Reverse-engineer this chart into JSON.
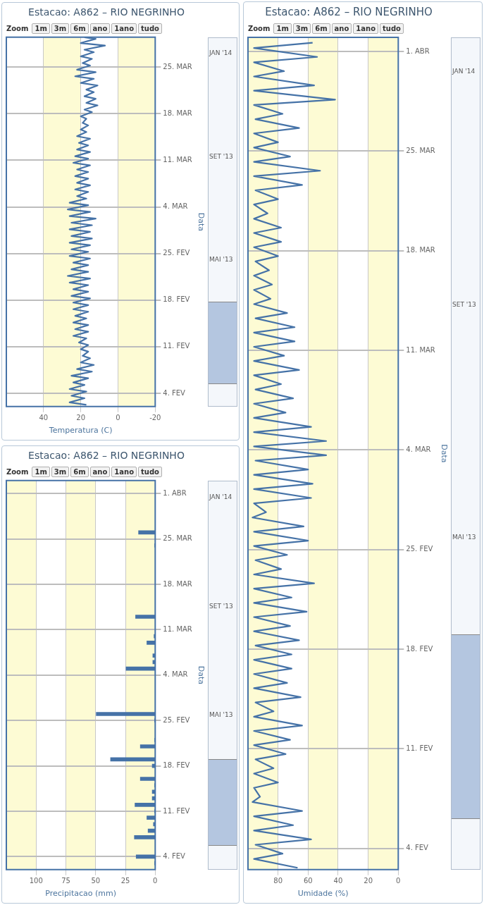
{
  "chart_data": [
    {
      "type": "line",
      "title": "Estacao: A862 – RIO NEGRINHO",
      "orientation": "horizontal",
      "xlabel": "Temperatura (C)",
      "ylabel": "Data",
      "color": "#4572a7",
      "grid": true,
      "ylim": [
        "2013-02-02",
        "2013-03-29T12:00"
      ],
      "yticks": [
        {
          "value": "2013-02-04",
          "label": "4. FEV"
        },
        {
          "value": "2013-02-11",
          "label": "11. FEV"
        },
        {
          "value": "2013-02-18",
          "label": "18. FEV"
        },
        {
          "value": "2013-02-25",
          "label": "25. FEV"
        },
        {
          "value": "2013-03-04",
          "label": "4. MAR"
        },
        {
          "value": "2013-03-11",
          "label": "11. MAR"
        },
        {
          "value": "2013-03-18",
          "label": "18. MAR"
        },
        {
          "value": "2013-03-25",
          "label": "25. MAR"
        }
      ],
      "xlim": [
        60,
        -20
      ],
      "xticks": [
        -20,
        0,
        20,
        40
      ],
      "bands": [
        {
          "axis": "x",
          "from": -20,
          "to": 0,
          "color": "#fdfbd4"
        },
        {
          "axis": "x",
          "from": 20,
          "to": 40,
          "color": "#fdfbd4"
        }
      ],
      "annotations": [
        "Zoom",
        "1m",
        "3m",
        "6m",
        "ano",
        "1ano",
        "tudo",
        "MAI '13",
        "SET '13",
        "JAN '14"
      ],
      "x": [
        "2013-02-02T06:00",
        "2013-02-02T15:00",
        "2013-02-03T06:00",
        "2013-02-03T15:00",
        "2013-02-04T06:00",
        "2013-02-04T15:00",
        "2013-02-05T06:00",
        "2013-02-05T15:00",
        "2013-02-06T06:00",
        "2013-02-06T15:00",
        "2013-02-07T06:00",
        "2013-02-07T15:00",
        "2013-02-08T06:00",
        "2013-02-08T15:00",
        "2013-02-09T06:00",
        "2013-02-09T15:00",
        "2013-02-10T06:00",
        "2013-02-10T15:00",
        "2013-02-11T06:00",
        "2013-02-11T15:00",
        "2013-02-12T06:00",
        "2013-02-12T15:00",
        "2013-02-13T06:00",
        "2013-02-13T15:00",
        "2013-02-14T06:00",
        "2013-02-14T15:00",
        "2013-02-15T06:00",
        "2013-02-15T15:00",
        "2013-02-16T06:00",
        "2013-02-16T15:00",
        "2013-02-17T06:00",
        "2013-02-17T15:00",
        "2013-02-18T06:00",
        "2013-02-18T15:00",
        "2013-02-19T06:00",
        "2013-02-19T15:00",
        "2013-02-20T06:00",
        "2013-02-20T15:00",
        "2013-02-21T06:00",
        "2013-02-21T15:00",
        "2013-02-22T06:00",
        "2013-02-22T15:00",
        "2013-02-23T06:00",
        "2013-02-23T15:00",
        "2013-02-24T06:00",
        "2013-02-24T15:00",
        "2013-02-25T06:00",
        "2013-02-25T15:00",
        "2013-02-26T06:00",
        "2013-02-26T15:00",
        "2013-02-27T06:00",
        "2013-02-27T15:00",
        "2013-02-28T06:00",
        "2013-02-28T15:00",
        "2013-03-01T06:00",
        "2013-03-01T15:00",
        "2013-03-02T06:00",
        "2013-03-02T15:00",
        "2013-03-03T06:00",
        "2013-03-03T15:00",
        "2013-03-04T06:00",
        "2013-03-04T15:00",
        "2013-03-05T06:00",
        "2013-03-05T15:00",
        "2013-03-06T06:00",
        "2013-03-06T15:00",
        "2013-03-07T06:00",
        "2013-03-07T15:00",
        "2013-03-08T06:00",
        "2013-03-08T15:00",
        "2013-03-09T06:00",
        "2013-03-09T15:00",
        "2013-03-10T06:00",
        "2013-03-10T15:00",
        "2013-03-11T06:00",
        "2013-03-11T15:00",
        "2013-03-12T06:00",
        "2013-03-12T15:00",
        "2013-03-13T06:00",
        "2013-03-13T15:00",
        "2013-03-14T06:00",
        "2013-03-14T15:00",
        "2013-03-15T06:00",
        "2013-03-15T15:00",
        "2013-03-16T06:00",
        "2013-03-16T15:00",
        "2013-03-17T06:00",
        "2013-03-17T15:00",
        "2013-03-18T06:00",
        "2013-03-18T15:00",
        "2013-03-19T06:00",
        "2013-03-19T15:00",
        "2013-03-20T06:00",
        "2013-03-20T15:00",
        "2013-03-21T06:00",
        "2013-03-21T15:00",
        "2013-03-22T06:00",
        "2013-03-22T15:00",
        "2013-03-23T06:00",
        "2013-03-23T15:00",
        "2013-03-24T06:00",
        "2013-03-24T15:00",
        "2013-03-25T06:00",
        "2013-03-25T15:00",
        "2013-03-26T06:00",
        "2013-03-26T15:00",
        "2013-03-27T06:00",
        "2013-03-27T15:00",
        "2013-03-28T06:00",
        "2013-03-28T15:00",
        "2013-03-29T06:00",
        "2013-03-29T12:00"
      ],
      "values": [
        17,
        26,
        18,
        25,
        17,
        26,
        18,
        24,
        16,
        25,
        14,
        22,
        13,
        20,
        15,
        19,
        16,
        20,
        16,
        21,
        17,
        24,
        16,
        23,
        16,
        24,
        17,
        23,
        16,
        24,
        16,
        24,
        15,
        25,
        16,
        24,
        16,
        26,
        15,
        27,
        16,
        25,
        16,
        24,
        15,
        26,
        16,
        25,
        15,
        26,
        14,
        25,
        15,
        26,
        14,
        25,
        12,
        26,
        15,
        27,
        16,
        26,
        17,
        22,
        16,
        23,
        15,
        22,
        16,
        23,
        16,
        22,
        15,
        24,
        16,
        23,
        15,
        22,
        16,
        21,
        15,
        22,
        17,
        20,
        16,
        19,
        17,
        20,
        14,
        18,
        11,
        17,
        12,
        18,
        13,
        17,
        11,
        20,
        13,
        23,
        12,
        22,
        15,
        19,
        14,
        20,
        13,
        18,
        7,
        20,
        12,
        18
      ]
    },
    {
      "type": "bar",
      "title": "Estacao: A862 – RIO NEGRINHO",
      "orientation": "horizontal",
      "xlabel": "Precipitacao (mm)",
      "ylabel": "Data",
      "color": "#4572a7",
      "grid": true,
      "ylim": [
        "2013-02-02",
        "2013-04-03"
      ],
      "yticks": [
        {
          "value": "2013-02-04",
          "label": "4. FEV"
        },
        {
          "value": "2013-02-11",
          "label": "11. FEV"
        },
        {
          "value": "2013-02-18",
          "label": "18. FEV"
        },
        {
          "value": "2013-02-25",
          "label": "25. FEV"
        },
        {
          "value": "2013-03-04",
          "label": "4. MAR"
        },
        {
          "value": "2013-03-11",
          "label": "11. MAR"
        },
        {
          "value": "2013-03-18",
          "label": "18. MAR"
        },
        {
          "value": "2013-03-25",
          "label": "25. MAR"
        },
        {
          "value": "2013-04-01",
          "label": "1. ABR"
        }
      ],
      "xlim": [
        125,
        0
      ],
      "xticks": [
        0,
        25,
        50,
        75,
        100
      ],
      "bands": [
        {
          "axis": "x",
          "from": 0,
          "to": 25,
          "color": "#fdfbd4"
        },
        {
          "axis": "x",
          "from": 50,
          "to": 75,
          "color": "#fdfbd4"
        },
        {
          "axis": "x",
          "from": 100,
          "to": 125,
          "color": "#fdfbd4"
        }
      ],
      "annotations": [
        "Zoom",
        "1m",
        "3m",
        "6m",
        "ano",
        "1ano",
        "tudo",
        "MAI '13",
        "SET '13",
        "JAN '14"
      ],
      "x": [
        "2013-02-03",
        "2013-02-04",
        "2013-02-07",
        "2013-02-08",
        "2013-02-09",
        "2013-02-10",
        "2013-02-11",
        "2013-02-12",
        "2013-02-13",
        "2013-02-14",
        "2013-02-15",
        "2013-02-16",
        "2013-02-18",
        "2013-02-19",
        "2013-02-21",
        "2013-02-22",
        "2013-02-25",
        "2013-02-26",
        "2013-03-05",
        "2013-03-06",
        "2013-03-07",
        "2013-03-09",
        "2013-03-10",
        "2013-03-13",
        "2013-03-24",
        "2013-03-26"
      ],
      "values": [
        0.5,
        16,
        17.5,
        6,
        1.5,
        7,
        0.5,
        17,
        2.5,
        2.5,
        0.5,
        12.5,
        2.5,
        37.5,
        12.5,
        0.5,
        0.5,
        49.5,
        24.5,
        2,
        2,
        7,
        1,
        16.5,
        0.5,
        14
      ]
    },
    {
      "type": "line",
      "title": "Estacao: A862 – RIO NEGRINHO",
      "orientation": "horizontal",
      "xlabel": "Umidade (%)",
      "ylabel": "Data",
      "color": "#4572a7",
      "grid": true,
      "ylim": [
        "2013-02-02T12:00",
        "2013-04-02"
      ],
      "yticks": [
        {
          "value": "2013-02-04",
          "label": "4. FEV"
        },
        {
          "value": "2013-02-11",
          "label": "11. FEV"
        },
        {
          "value": "2013-02-18",
          "label": "18. FEV"
        },
        {
          "value": "2013-02-25",
          "label": "25. FEV"
        },
        {
          "value": "2013-03-04",
          "label": "4. MAR"
        },
        {
          "value": "2013-03-11",
          "label": "11. MAR"
        },
        {
          "value": "2013-03-18",
          "label": "18. MAR"
        },
        {
          "value": "2013-03-25",
          "label": "25. MAR"
        },
        {
          "value": "2013-04-01",
          "label": "1. ABR"
        }
      ],
      "xlim": [
        100,
        0
      ],
      "xticks": [
        0,
        20,
        40,
        60,
        80
      ],
      "bands": [
        {
          "axis": "x",
          "from": 0,
          "to": 20,
          "color": "#fdfbd4"
        },
        {
          "axis": "x",
          "from": 40,
          "to": 60,
          "color": "#fdfbd4"
        },
        {
          "axis": "x",
          "from": 80,
          "to": 100,
          "color": "#fdfbd4"
        }
      ],
      "annotations": [
        "Zoom",
        "1m",
        "3m",
        "6m",
        "ano",
        "1ano",
        "tudo",
        "MAI '13",
        "SET '13",
        "JAN '14"
      ],
      "x": [
        "2013-02-02T15:00",
        "2013-02-03T06:00",
        "2013-02-03T15:00",
        "2013-02-04T06:00",
        "2013-02-04T15:00",
        "2013-02-05T06:00",
        "2013-02-05T15:00",
        "2013-02-06T06:00",
        "2013-02-06T15:00",
        "2013-02-07T06:00",
        "2013-02-07T15:00",
        "2013-02-08T06:00",
        "2013-02-08T15:00",
        "2013-02-09T06:00",
        "2013-02-09T15:00",
        "2013-02-10T06:00",
        "2013-02-10T15:00",
        "2013-02-11T06:00",
        "2013-02-11T15:00",
        "2013-02-12T06:00",
        "2013-02-12T15:00",
        "2013-02-13T06:00",
        "2013-02-13T15:00",
        "2013-02-14T06:00",
        "2013-02-14T15:00",
        "2013-02-15T06:00",
        "2013-02-15T15:00",
        "2013-02-16T06:00",
        "2013-02-16T15:00",
        "2013-02-17T06:00",
        "2013-02-17T15:00",
        "2013-02-18T06:00",
        "2013-02-18T15:00",
        "2013-02-19T06:00",
        "2013-02-19T15:00",
        "2013-02-20T06:00",
        "2013-02-20T15:00",
        "2013-02-21T06:00",
        "2013-02-21T15:00",
        "2013-02-22T06:00",
        "2013-02-22T15:00",
        "2013-02-23T06:00",
        "2013-02-23T15:00",
        "2013-02-24T06:00",
        "2013-02-24T15:00",
        "2013-02-25T06:00",
        "2013-02-25T15:00",
        "2013-02-26T06:00",
        "2013-02-26T15:00",
        "2013-02-27T06:00",
        "2013-02-27T15:00",
        "2013-02-28T06:00",
        "2013-02-28T15:00",
        "2013-03-01T06:00",
        "2013-03-01T15:00",
        "2013-03-02T06:00",
        "2013-03-02T15:00",
        "2013-03-03T06:00",
        "2013-03-03T15:00",
        "2013-03-04T06:00",
        "2013-03-04T15:00",
        "2013-03-05T06:00",
        "2013-03-05T15:00",
        "2013-03-06T06:00",
        "2013-03-06T15:00",
        "2013-03-07T06:00",
        "2013-03-07T15:00",
        "2013-03-08T06:00",
        "2013-03-08T15:00",
        "2013-03-09T06:00",
        "2013-03-09T15:00",
        "2013-03-10T06:00",
        "2013-03-10T15:00",
        "2013-03-11T06:00",
        "2013-03-11T15:00",
        "2013-03-12T06:00",
        "2013-03-12T15:00",
        "2013-03-13T06:00",
        "2013-03-13T15:00",
        "2013-03-14T06:00",
        "2013-03-14T15:00",
        "2013-03-15T06:00",
        "2013-03-15T15:00",
        "2013-03-16T06:00",
        "2013-03-16T15:00",
        "2013-03-17T06:00",
        "2013-03-17T15:00",
        "2013-03-18T06:00",
        "2013-03-18T15:00",
        "2013-03-19T06:00",
        "2013-03-19T15:00",
        "2013-03-20T06:00",
        "2013-03-20T15:00",
        "2013-03-21T06:00",
        "2013-03-21T15:00",
        "2013-03-22T06:00",
        "2013-03-22T15:00",
        "2013-03-23T06:00",
        "2013-03-23T15:00",
        "2013-03-24T06:00",
        "2013-03-24T15:00",
        "2013-03-25T06:00",
        "2013-03-25T15:00",
        "2013-03-26T06:00",
        "2013-03-26T15:00",
        "2013-03-27T06:00",
        "2013-03-27T15:00",
        "2013-03-28T06:00",
        "2013-03-28T15:00",
        "2013-03-29T06:00",
        "2013-03-29T15:00",
        "2013-03-30T06:00",
        "2013-03-30T15:00",
        "2013-03-31T06:00",
        "2013-03-31T15:00",
        "2013-04-01T06:00",
        "2013-04-01T15:00"
      ],
      "values": [
        67,
        96,
        77,
        95,
        58,
        96,
        70,
        96,
        64,
        97,
        92,
        96,
        80,
        96,
        83,
        95,
        75,
        96,
        72,
        96,
        64,
        96,
        83,
        95,
        65,
        96,
        74,
        96,
        71,
        96,
        71,
        95,
        66,
        96,
        72,
        96,
        61,
        96,
        71,
        96,
        56,
        96,
        78,
        95,
        74,
        96,
        60,
        96,
        63,
        97,
        88,
        96,
        58,
        96,
        57,
        96,
        60,
        95,
        48,
        96,
        48,
        96,
        58,
        96,
        75,
        96,
        70,
        95,
        78,
        96,
        66,
        96,
        76,
        96,
        69,
        96,
        69,
        95,
        74,
        96,
        85,
        96,
        84,
        96,
        86,
        95,
        80,
        96,
        78,
        96,
        78,
        96,
        87,
        96,
        80,
        95,
        64,
        96,
        52,
        96,
        72,
        96,
        80,
        96,
        66,
        95,
        77,
        96,
        42,
        96,
        56,
        96,
        76,
        96,
        54,
        96,
        57
      ]
    }
  ]
}
